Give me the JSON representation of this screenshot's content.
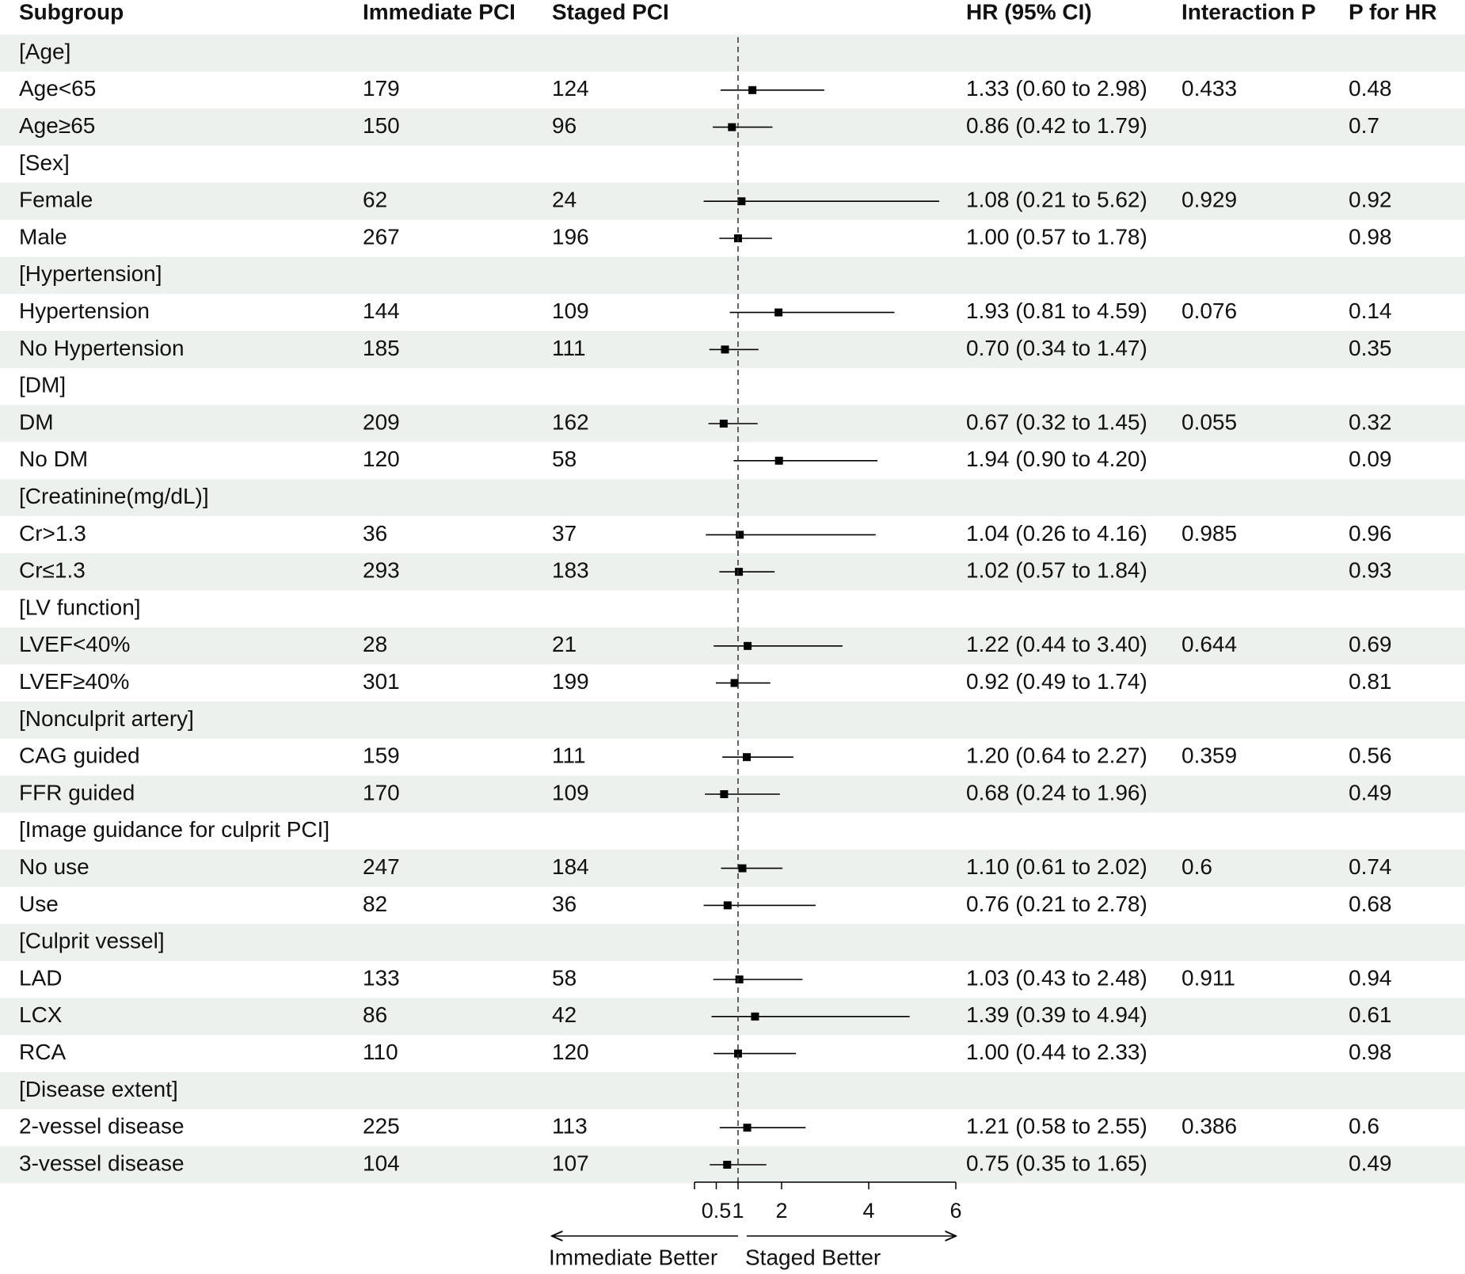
{
  "chart_data": {
    "type": "forest",
    "columns": [
      "Subgroup",
      "Immediate PCI",
      "Staged PCI",
      "HR (95% CI)",
      "Interaction P",
      "P for HR"
    ],
    "rows": [
      {
        "label": "[Age]"
      },
      {
        "label": "Age<65",
        "immediate": 179,
        "staged": 124,
        "hr": 1.33,
        "lo": 0.6,
        "hi": 2.98,
        "hr_label": "1.33 (0.60 to 2.98)",
        "interaction_p": 0.433,
        "p_hr": 0.48
      },
      {
        "label": "Age≥65",
        "immediate": 150,
        "staged": 96,
        "hr": 0.86,
        "lo": 0.42,
        "hi": 1.79,
        "hr_label": "0.86 (0.42 to 1.79)",
        "p_hr": 0.7
      },
      {
        "label": "[Sex]"
      },
      {
        "label": "Female",
        "immediate": 62,
        "staged": 24,
        "hr": 1.08,
        "lo": 0.21,
        "hi": 5.62,
        "hr_label": "1.08 (0.21 to 5.62)",
        "interaction_p": 0.929,
        "p_hr": 0.92
      },
      {
        "label": "Male",
        "immediate": 267,
        "staged": 196,
        "hr": 1.0,
        "lo": 0.57,
        "hi": 1.78,
        "hr_label": "1.00 (0.57 to 1.78)",
        "p_hr": 0.98
      },
      {
        "label": "[Hypertension]"
      },
      {
        "label": "Hypertension",
        "immediate": 144,
        "staged": 109,
        "hr": 1.93,
        "lo": 0.81,
        "hi": 4.59,
        "hr_label": "1.93 (0.81 to 4.59)",
        "interaction_p": 0.076,
        "p_hr": 0.14
      },
      {
        "label": "No Hypertension",
        "immediate": 185,
        "staged": 111,
        "hr": 0.7,
        "lo": 0.34,
        "hi": 1.47,
        "hr_label": "0.70 (0.34 to 1.47)",
        "p_hr": 0.35
      },
      {
        "label": "[DM]"
      },
      {
        "label": "DM",
        "immediate": 209,
        "staged": 162,
        "hr": 0.67,
        "lo": 0.32,
        "hi": 1.45,
        "hr_label": "0.67 (0.32 to 1.45)",
        "interaction_p": 0.055,
        "p_hr": 0.32
      },
      {
        "label": "No DM",
        "immediate": 120,
        "staged": 58,
        "hr": 1.94,
        "lo": 0.9,
        "hi": 4.2,
        "hr_label": "1.94 (0.90 to 4.20)",
        "p_hr": 0.09
      },
      {
        "label": "[Creatinine(mg/dL)]"
      },
      {
        "label": "Cr>1.3",
        "immediate": 36,
        "staged": 37,
        "hr": 1.04,
        "lo": 0.26,
        "hi": 4.16,
        "hr_label": "1.04 (0.26 to 4.16)",
        "interaction_p": 0.985,
        "p_hr": 0.96
      },
      {
        "label": "Cr≤1.3",
        "immediate": 293,
        "staged": 183,
        "hr": 1.02,
        "lo": 0.57,
        "hi": 1.84,
        "hr_label": "1.02 (0.57 to 1.84)",
        "p_hr": 0.93
      },
      {
        "label": "[LV function]"
      },
      {
        "label": "LVEF<40%",
        "immediate": 28,
        "staged": 21,
        "hr": 1.22,
        "lo": 0.44,
        "hi": 3.4,
        "hr_label": "1.22 (0.44 to 3.40)",
        "interaction_p": 0.644,
        "p_hr": 0.69
      },
      {
        "label": "LVEF≥40%",
        "immediate": 301,
        "staged": 199,
        "hr": 0.92,
        "lo": 0.49,
        "hi": 1.74,
        "hr_label": "0.92 (0.49 to 1.74)",
        "p_hr": 0.81
      },
      {
        "label": "[Nonculprit artery]"
      },
      {
        "label": "CAG guided",
        "immediate": 159,
        "staged": 111,
        "hr": 1.2,
        "lo": 0.64,
        "hi": 2.27,
        "hr_label": "1.20 (0.64 to 2.27)",
        "interaction_p": 0.359,
        "p_hr": 0.56
      },
      {
        "label": "FFR guided",
        "immediate": 170,
        "staged": 109,
        "hr": 0.68,
        "lo": 0.24,
        "hi": 1.96,
        "hr_label": "0.68 (0.24 to 1.96)",
        "p_hr": 0.49
      },
      {
        "label": "[Image guidance for culprit PCI]"
      },
      {
        "label": "No use",
        "immediate": 247,
        "staged": 184,
        "hr": 1.1,
        "lo": 0.61,
        "hi": 2.02,
        "hr_label": "1.10 (0.61 to 2.02)",
        "interaction_p": 0.6,
        "p_hr": 0.74
      },
      {
        "label": "Use",
        "immediate": 82,
        "staged": 36,
        "hr": 0.76,
        "lo": 0.21,
        "hi": 2.78,
        "hr_label": "0.76 (0.21 to 2.78)",
        "p_hr": 0.68
      },
      {
        "label": "[Culprit vessel]"
      },
      {
        "label": "LAD",
        "immediate": 133,
        "staged": 58,
        "hr": 1.03,
        "lo": 0.43,
        "hi": 2.48,
        "hr_label": "1.03 (0.43 to 2.48)",
        "interaction_p": 0.911,
        "p_hr": 0.94
      },
      {
        "label": "LCX",
        "immediate": 86,
        "staged": 42,
        "hr": 1.39,
        "lo": 0.39,
        "hi": 4.94,
        "hr_label": "1.39 (0.39 to 4.94)",
        "p_hr": 0.61
      },
      {
        "label": "RCA",
        "immediate": 110,
        "staged": 120,
        "hr": 1.0,
        "lo": 0.44,
        "hi": 2.33,
        "hr_label": "1.00 (0.44 to 2.33)",
        "p_hr": 0.98
      },
      {
        "label": "[Disease extent]"
      },
      {
        "label": "2-vessel disease",
        "immediate": 225,
        "staged": 113,
        "hr": 1.21,
        "lo": 0.58,
        "hi": 2.55,
        "hr_label": "1.21 (0.58 to 2.55)",
        "interaction_p": 0.386,
        "p_hr": 0.6
      },
      {
        "label": "3-vessel disease",
        "immediate": 104,
        "staged": 107,
        "hr": 0.75,
        "lo": 0.35,
        "hi": 1.65,
        "hr_label": "0.75 (0.35 to 1.65)",
        "p_hr": 0.49
      }
    ],
    "xlim": [
      0,
      6
    ],
    "xticks": [
      0.5,
      1,
      2,
      4,
      6
    ],
    "reference": 1,
    "left_label": "Immediate Better",
    "right_label": "Staged Better",
    "color": "#000000",
    "stripe_color": "#edf1ed"
  }
}
